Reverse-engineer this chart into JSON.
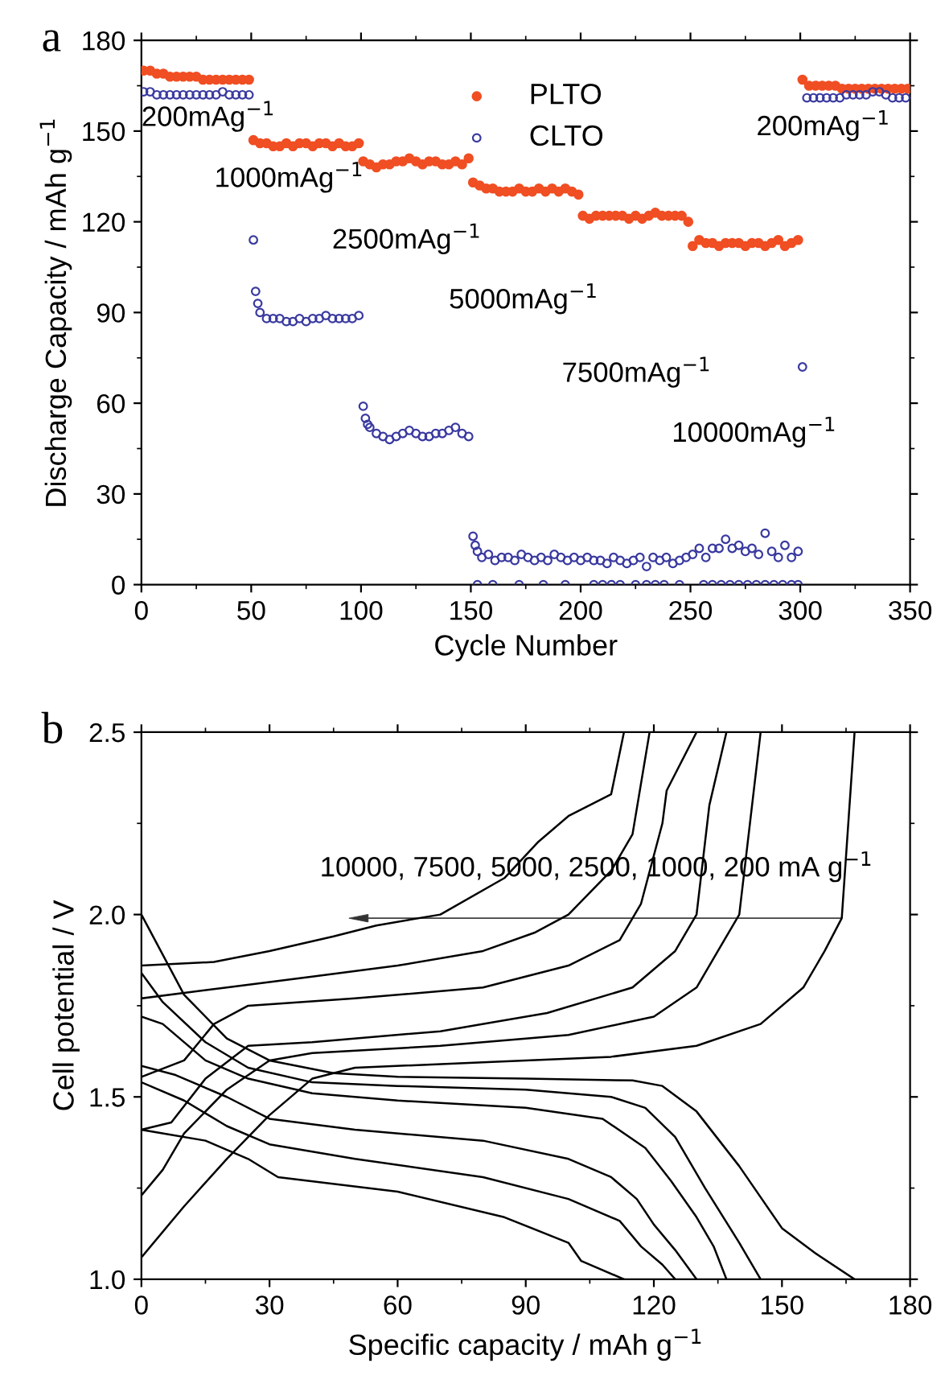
{
  "chart_data": [
    {
      "type": "scatter",
      "title": "a",
      "xlabel": "Cycle Number",
      "ylabel": "Discharge Capacity / mAh g$^{−1}$",
      "xlim": [
        0,
        350
      ],
      "ylim": [
        0,
        180
      ],
      "xticks": [
        0,
        50,
        100,
        150,
        200,
        250,
        300,
        350
      ],
      "yticks": [
        0,
        30,
        60,
        90,
        120,
        150,
        180
      ],
      "legend": "top",
      "marker": "circle",
      "grid": false,
      "series": [
        {
          "name": "PLTO",
          "color": "#f04e23",
          "x": [
            1,
            4,
            7,
            10,
            13,
            16,
            19,
            22,
            25,
            28,
            31,
            34,
            37,
            40,
            43,
            46,
            49,
            51,
            54,
            57,
            60,
            63,
            66,
            69,
            72,
            75,
            78,
            81,
            84,
            87,
            90,
            93,
            96,
            99,
            101,
            104,
            107,
            110,
            113,
            116,
            119,
            122,
            125,
            128,
            131,
            134,
            137,
            140,
            143,
            146,
            149,
            151,
            154,
            157,
            160,
            163,
            166,
            169,
            172,
            175,
            178,
            181,
            184,
            187,
            190,
            193,
            196,
            199,
            201,
            204,
            207,
            210,
            213,
            216,
            219,
            222,
            225,
            228,
            231,
            234,
            237,
            240,
            243,
            246,
            249,
            251,
            254,
            257,
            260,
            263,
            266,
            269,
            272,
            275,
            278,
            281,
            284,
            287,
            290,
            293,
            296,
            299,
            301,
            304,
            307,
            310,
            313,
            316,
            319,
            322,
            325,
            328,
            331,
            334,
            337,
            340,
            343,
            346,
            349
          ],
          "values": [
            170,
            170,
            169,
            169,
            168,
            168,
            168,
            168,
            168,
            167,
            167,
            167,
            167,
            167,
            167,
            167,
            167,
            147,
            146,
            146,
            145,
            145,
            146,
            145,
            146,
            146,
            145,
            146,
            146,
            145,
            146,
            145,
            145,
            146,
            140,
            139,
            138,
            139,
            139,
            140,
            140,
            141,
            140,
            139,
            140,
            140,
            139,
            139,
            140,
            139,
            141,
            133,
            132,
            131,
            131,
            130,
            130,
            130,
            131,
            130,
            130,
            131,
            130,
            131,
            130,
            131,
            130,
            129,
            122,
            121,
            122,
            122,
            122,
            122,
            122,
            121,
            122,
            121,
            122,
            123,
            122,
            122,
            122,
            122,
            120,
            112,
            114,
            113,
            113,
            112,
            113,
            113,
            113,
            112,
            113,
            113,
            112,
            113,
            114,
            112,
            113,
            114,
            167,
            165,
            165,
            165,
            165,
            165,
            164,
            164,
            164,
            164,
            164,
            164,
            164,
            164,
            164,
            164,
            164
          ]
        },
        {
          "name": "CLTO",
          "color": "#3a3aa0",
          "x": [
            1,
            4,
            7,
            10,
            13,
            16,
            19,
            22,
            25,
            28,
            31,
            34,
            37,
            40,
            43,
            46,
            49,
            51,
            52,
            53,
            54,
            57,
            60,
            63,
            66,
            69,
            72,
            75,
            78,
            81,
            84,
            87,
            90,
            93,
            96,
            99,
            101,
            102,
            103,
            104,
            107,
            110,
            113,
            116,
            119,
            122,
            125,
            128,
            131,
            134,
            137,
            140,
            143,
            146,
            149,
            151,
            152,
            153,
            155,
            158,
            161,
            164,
            167,
            170,
            173,
            176,
            179,
            182,
            185,
            188,
            191,
            194,
            197,
            200,
            203,
            206,
            209,
            212,
            215,
            218,
            221,
            224,
            227,
            230,
            233,
            236,
            239,
            242,
            245,
            248,
            251,
            254,
            257,
            260,
            263,
            266,
            269,
            272,
            275,
            278,
            281,
            284,
            287,
            290,
            293,
            296,
            299,
            301,
            303,
            306,
            309,
            312,
            315,
            318,
            321,
            324,
            327,
            330,
            333,
            336,
            339,
            342,
            345,
            348,
            153,
            160,
            172,
            183,
            193,
            206,
            210,
            214,
            218,
            225,
            230,
            234,
            238,
            245,
            256,
            260,
            264,
            268,
            272,
            276,
            280,
            284,
            288,
            292,
            296,
            299
          ],
          "values": [
            163,
            163,
            162,
            162,
            162,
            162,
            162,
            162,
            162,
            162,
            162,
            162,
            163,
            162,
            162,
            162,
            162,
            114,
            97,
            93,
            90,
            88,
            88,
            88,
            87,
            87,
            88,
            87,
            88,
            88,
            89,
            88,
            88,
            88,
            88,
            89,
            59,
            55,
            53,
            52,
            50,
            49,
            48,
            49,
            50,
            51,
            50,
            49,
            49,
            50,
            50,
            51,
            52,
            50,
            49,
            16,
            13,
            11,
            9,
            10,
            8,
            9,
            9,
            8,
            10,
            9,
            8,
            9,
            8,
            10,
            9,
            8,
            9,
            8,
            9,
            8,
            8,
            7,
            9,
            8,
            7,
            8,
            9,
            6,
            9,
            8,
            9,
            7,
            8,
            9,
            10,
            12,
            9,
            12,
            12,
            15,
            12,
            13,
            11,
            12,
            10,
            17,
            11,
            9,
            13,
            9,
            11,
            72,
            161,
            161,
            161,
            161,
            161,
            161,
            162,
            162,
            162,
            162,
            163,
            163,
            162,
            161,
            161,
            161,
            0,
            0,
            0,
            0,
            0,
            0,
            0,
            0,
            0,
            0,
            0,
            0,
            0,
            0,
            0,
            0,
            0,
            0,
            0,
            0,
            0,
            0,
            0,
            0,
            0,
            0
          ]
        }
      ],
      "annotations": [
        "200mAg$^{−1}$",
        "1000mAg$^{−1}$",
        "2500mAg$^{−1}$",
        "5000mAg$^{−1}$",
        "7500mAg$^{−1}$",
        "10000mAg$^{−1}$",
        "200mAg$^{−1}$"
      ]
    },
    {
      "type": "line",
      "title": "b",
      "xlabel": "Specific capacity / mAh g$^{−1}$",
      "ylabel": "Cell potential / V",
      "xlim": [
        0,
        180
      ],
      "ylim": [
        1.0,
        2.5
      ],
      "xticks": [
        0,
        30,
        60,
        90,
        120,
        150,
        180
      ],
      "yticks": [
        {
          "value": 1.0,
          "label": "1.0"
        },
        1.5,
        {
          "value": 2.0,
          "label": "2.0"
        },
        2.5
      ],
      "grid": false,
      "legend": false,
      "series": [
        {
          "color": "#000000",
          "x": [
            0,
            10,
            20,
            30,
            45,
            60,
            90,
            115,
            122,
            130,
            140,
            150,
            158,
            167
          ],
          "values": [
            2.0,
            1.78,
            1.66,
            1.6,
            1.565,
            1.555,
            1.55,
            1.545,
            1.53,
            1.46,
            1.31,
            1.14,
            1.07,
            1.0
          ]
        },
        {
          "color": "#000000",
          "x": [
            0,
            5,
            15,
            25,
            40,
            60,
            90,
            110,
            118,
            125,
            132,
            140,
            145
          ],
          "values": [
            1.84,
            1.76,
            1.65,
            1.58,
            1.54,
            1.53,
            1.52,
            1.5,
            1.47,
            1.39,
            1.25,
            1.1,
            1.0
          ]
        },
        {
          "color": "#000000",
          "x": [
            0,
            5,
            15,
            25,
            40,
            60,
            90,
            108,
            118,
            124,
            130,
            134,
            137
          ],
          "values": [
            1.72,
            1.7,
            1.6,
            1.55,
            1.51,
            1.49,
            1.47,
            1.44,
            1.36,
            1.27,
            1.17,
            1.09,
            1.0
          ]
        },
        {
          "color": "#000000",
          "x": [
            0,
            8,
            20,
            30,
            50,
            80,
            100,
            110,
            116,
            120,
            125,
            130
          ],
          "values": [
            1.585,
            1.56,
            1.5,
            1.44,
            1.41,
            1.38,
            1.33,
            1.28,
            1.22,
            1.15,
            1.08,
            1.0
          ]
        },
        {
          "color": "#000000",
          "x": [
            0,
            10,
            20,
            30,
            50,
            80,
            100,
            112,
            117,
            122,
            125
          ],
          "values": [
            1.54,
            1.49,
            1.42,
            1.37,
            1.33,
            1.28,
            1.22,
            1.16,
            1.09,
            1.04,
            1.0
          ]
        },
        {
          "color": "#000000",
          "x": [
            0,
            15,
            25,
            32,
            60,
            85,
            100,
            103,
            113
          ],
          "values": [
            1.41,
            1.38,
            1.33,
            1.28,
            1.24,
            1.17,
            1.1,
            1.05,
            1.0
          ]
        },
        {
          "color": "#000000",
          "x": [
            0,
            10,
            20,
            30,
            40,
            50,
            80,
            110,
            130,
            145,
            155,
            160,
            164,
            167
          ],
          "values": [
            1.06,
            1.2,
            1.33,
            1.45,
            1.55,
            1.58,
            1.595,
            1.61,
            1.64,
            1.7,
            1.8,
            1.9,
            1.99,
            2.5
          ]
        },
        {
          "color": "#000000",
          "x": [
            0,
            5,
            10,
            20,
            30,
            40,
            70,
            100,
            120,
            130,
            135,
            140,
            143,
            145
          ],
          "values": [
            1.23,
            1.3,
            1.4,
            1.52,
            1.6,
            1.62,
            1.64,
            1.67,
            1.72,
            1.8,
            1.9,
            2.0,
            2.3,
            2.5
          ]
        },
        {
          "color": "#000000",
          "x": [
            0,
            7,
            15,
            25,
            40,
            70,
            95,
            115,
            125,
            130,
            133,
            137
          ],
          "values": [
            1.41,
            1.43,
            1.55,
            1.64,
            1.65,
            1.68,
            1.73,
            1.8,
            1.9,
            2.0,
            2.3,
            2.5
          ]
        },
        {
          "color": "#000000",
          "x": [
            0,
            10,
            17,
            25,
            50,
            80,
            100,
            112,
            117,
            122,
            123,
            130
          ],
          "values": [
            1.555,
            1.6,
            1.7,
            1.75,
            1.77,
            1.8,
            1.86,
            1.93,
            2.03,
            2.25,
            2.34,
            2.5
          ]
        },
        {
          "color": "#000000",
          "x": [
            0,
            20,
            40,
            60,
            80,
            92,
            100,
            110,
            115,
            119
          ],
          "values": [
            1.77,
            1.8,
            1.83,
            1.86,
            1.9,
            1.95,
            2.0,
            2.12,
            2.22,
            2.5
          ]
        },
        {
          "color": "#000000",
          "x": [
            0,
            17,
            30,
            45,
            55,
            70,
            85,
            93,
            100,
            110,
            113
          ],
          "values": [
            1.86,
            1.87,
            1.9,
            1.94,
            1.97,
            2.0,
            2.1,
            2.2,
            2.27,
            2.33,
            2.5
          ]
        }
      ],
      "annotations": [
        {
          "text": "10000, 7500, 5000, 2500, 1000, 200 mA g$^{−1}$",
          "x": 164,
          "y": 1.99
        }
      ]
    }
  ]
}
